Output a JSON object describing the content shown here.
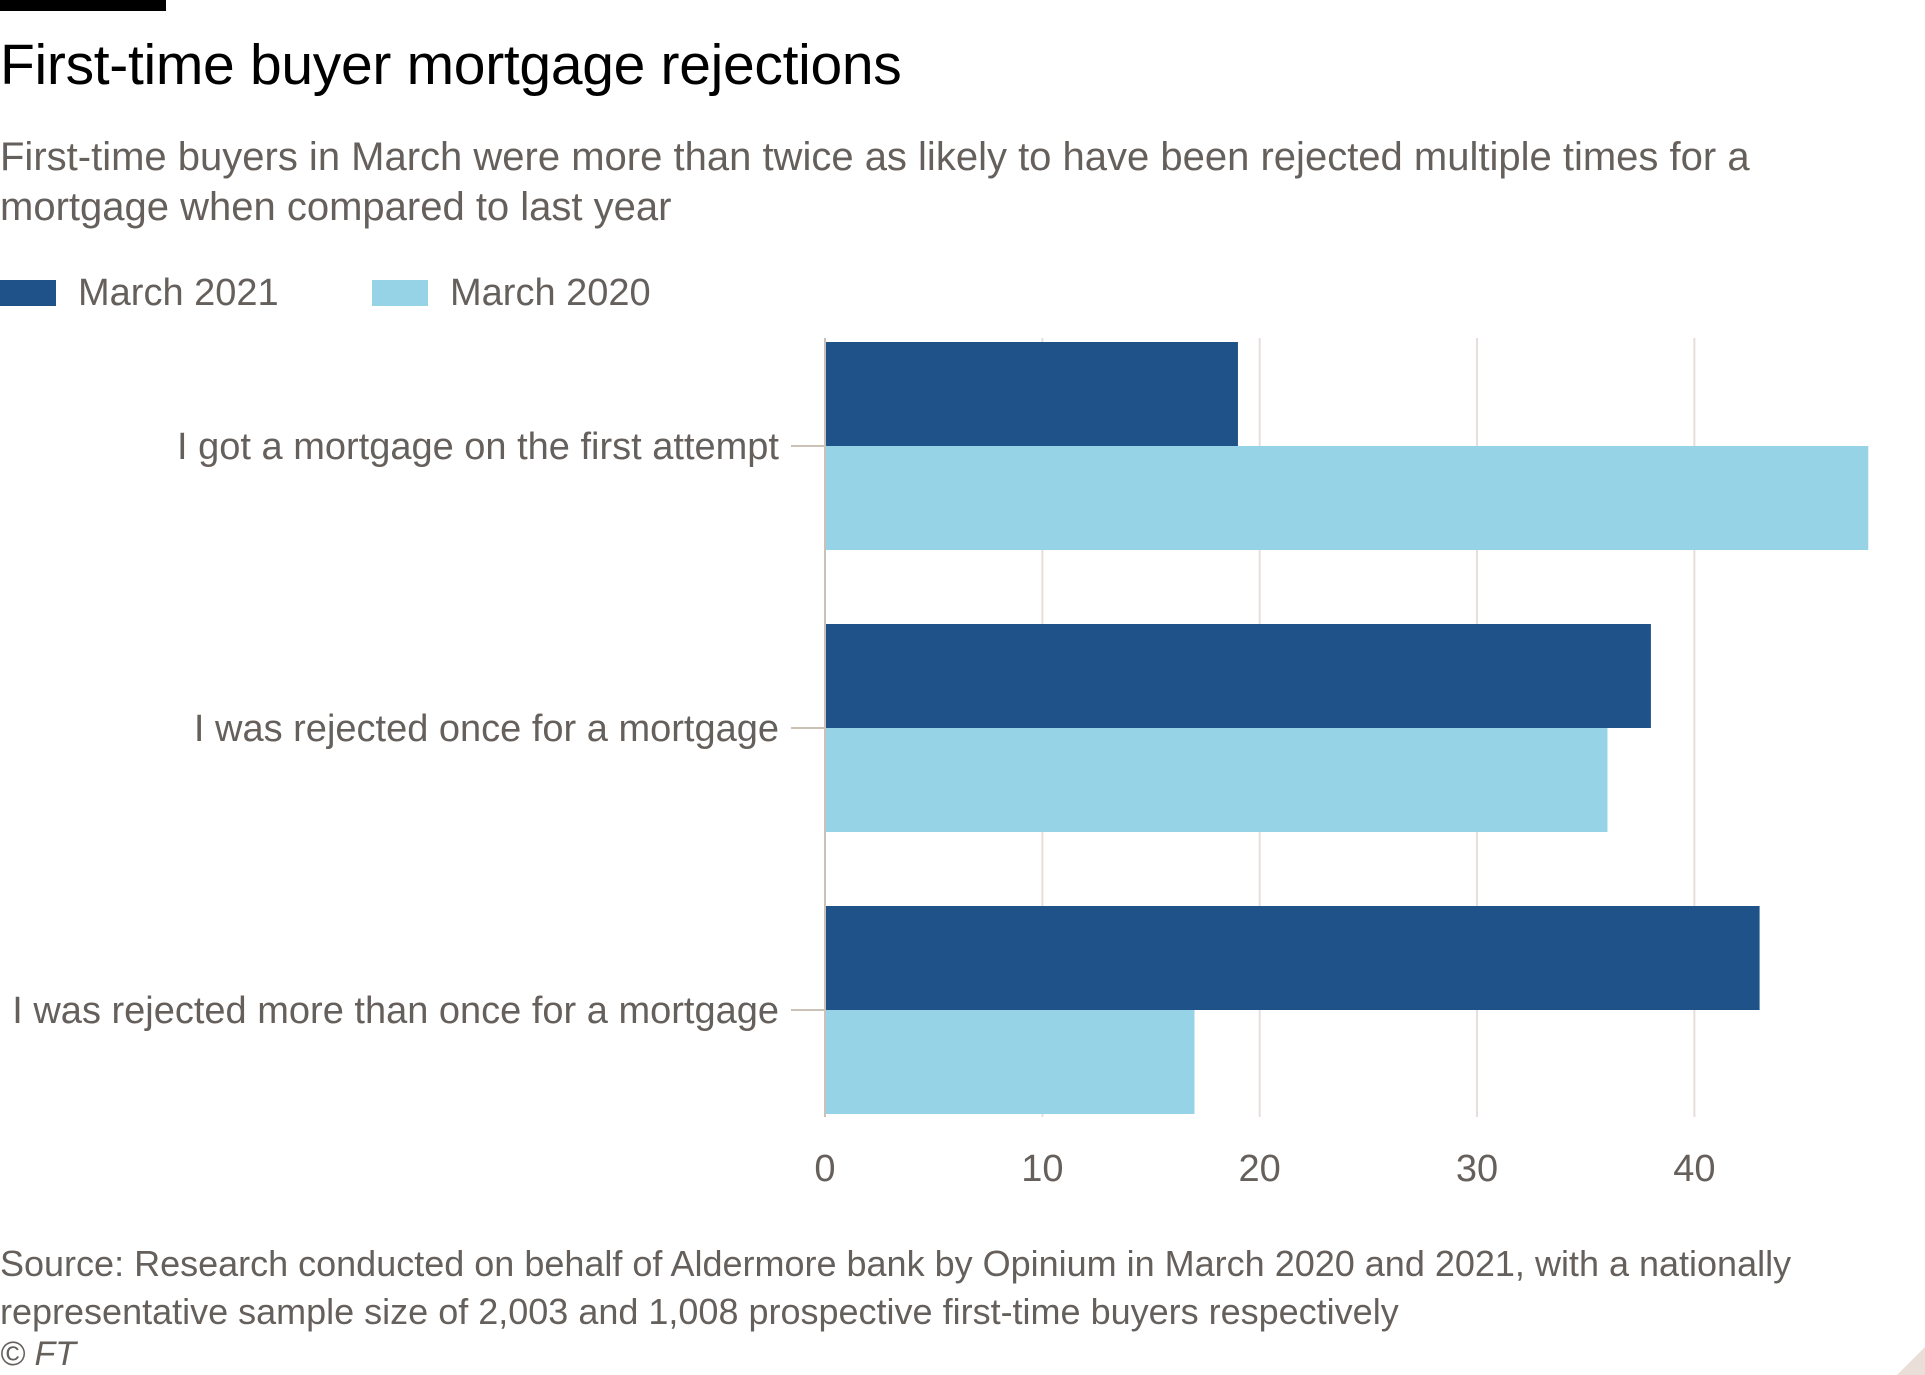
{
  "header": {
    "title": "First-time buyer mortgage rejections",
    "subtitle": "First-time buyers in March were more than twice as likely to have been rejected multiple times for a mortgage when compared to last year"
  },
  "legend": {
    "items": [
      {
        "label": "March 2021",
        "color": "#1f5289"
      },
      {
        "label": "March 2020",
        "color": "#96d3e6"
      }
    ]
  },
  "chart_data": {
    "type": "bar",
    "orientation": "horizontal",
    "title": "First-time buyer mortgage rejections",
    "categories": [
      "I got a mortgage on the first attempt",
      "I was rejected once for a mortgage",
      "I was rejected more than once for a mortgage"
    ],
    "series": [
      {
        "name": "March 2021",
        "color": "#1f5289",
        "values": [
          19,
          38,
          43
        ]
      },
      {
        "name": "March 2020",
        "color": "#96d3e6",
        "values": [
          48,
          36,
          17
        ]
      }
    ],
    "xlim": [
      0,
      49
    ],
    "xticks": [
      0,
      10,
      20,
      30,
      40
    ],
    "xlabel": "",
    "ylabel": "",
    "grid": true,
    "legend_position": "top-left"
  },
  "footer": {
    "source": "Source: Research conducted on behalf of Aldermore bank by Opinium in March 2020 and 2021, with a nationally representative sample size of 2,003 and 1,008 prospective first-time buyers respectively",
    "credit": "© FT"
  }
}
